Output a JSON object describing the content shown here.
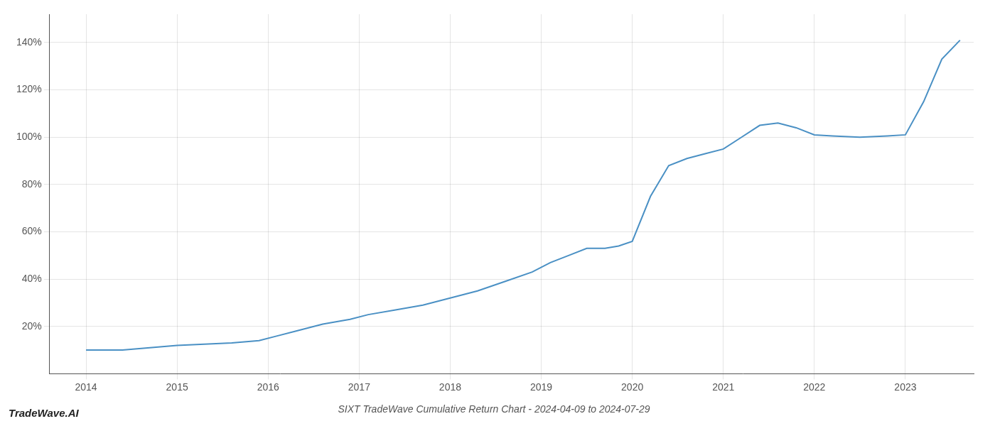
{
  "chart_data": {
    "type": "line",
    "title": "SIXT TradeWave Cumulative Return Chart - 2024-04-09 to 2024-07-29",
    "annotations": [
      "TradeWave.AI"
    ],
    "x": [
      2014.0,
      2014.2,
      2014.4,
      2014.7,
      2015.0,
      2015.3,
      2015.6,
      2015.9,
      2016.1,
      2016.3,
      2016.6,
      2016.9,
      2017.1,
      2017.4,
      2017.7,
      2018.0,
      2018.3,
      2018.6,
      2018.9,
      2019.1,
      2019.3,
      2019.5,
      2019.7,
      2019.85,
      2020.0,
      2020.2,
      2020.4,
      2020.6,
      2020.8,
      2021.0,
      2021.2,
      2021.4,
      2021.6,
      2021.8,
      2022.0,
      2022.2,
      2022.5,
      2022.8,
      2023.0,
      2023.2,
      2023.4,
      2023.6
    ],
    "values": [
      10,
      10,
      10,
      11,
      12,
      12.5,
      13,
      14,
      16,
      18,
      21,
      23,
      25,
      27,
      29,
      32,
      35,
      39,
      43,
      47,
      50,
      53,
      53,
      54,
      56,
      75,
      88,
      91,
      93,
      95,
      100,
      105,
      106,
      104,
      101,
      100.5,
      100,
      100.5,
      101,
      115,
      133,
      141
    ],
    "color": "#4a90c4",
    "xlim": [
      2013.6,
      2023.75
    ],
    "ylim": [
      0,
      152
    ],
    "xticks": [
      2014,
      2015,
      2016,
      2017,
      2018,
      2019,
      2020,
      2021,
      2022,
      2023
    ],
    "yticks": [
      {
        "value": 20,
        "label": "20%"
      },
      {
        "value": 40,
        "label": "40%"
      },
      {
        "value": 60,
        "label": "60%"
      },
      {
        "value": 80,
        "label": "80%"
      },
      {
        "value": 100,
        "label": "100%"
      },
      {
        "value": 120,
        "label": "120%"
      },
      {
        "value": 140,
        "label": "140%"
      }
    ],
    "grid": true
  }
}
